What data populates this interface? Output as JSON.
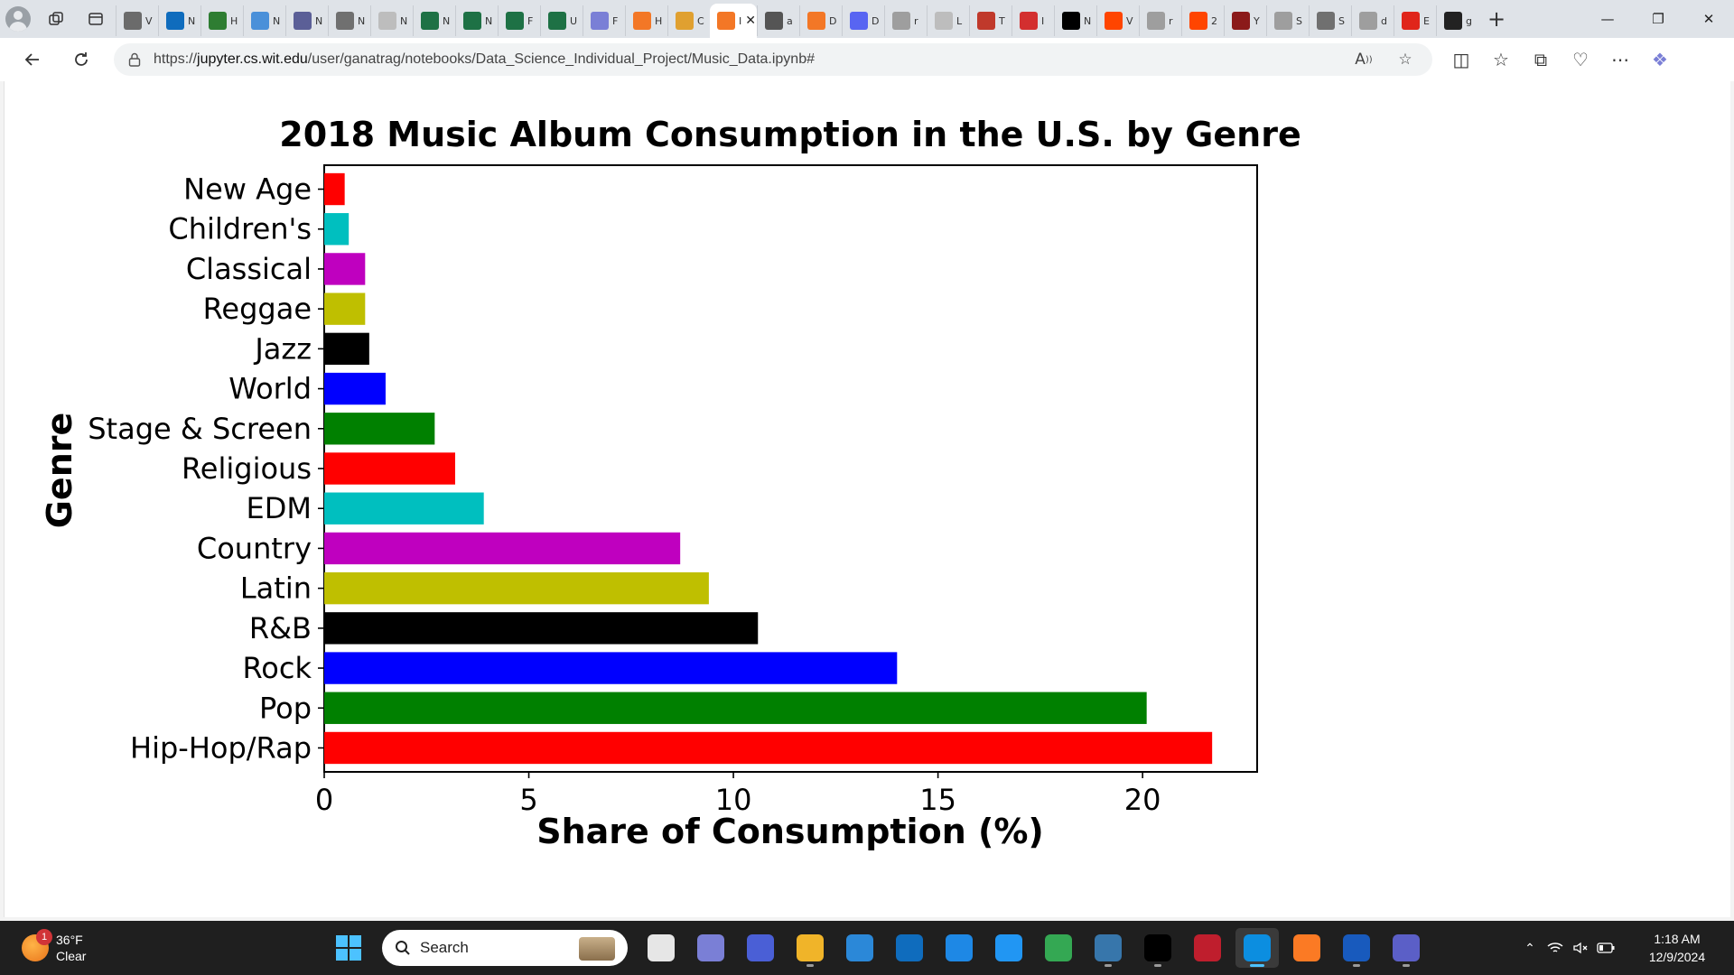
{
  "browser": {
    "url_prefix": "https://",
    "url_host": "jupyter.cs.wit.edu",
    "url_path": "/user/ganatrag/notebooks/Data_Science_Individual_Project/Music_Data.ipynb#",
    "tabs": [
      {
        "label": "V",
        "icon": "scissors-icon",
        "color": "#6b6b6b"
      },
      {
        "label": "N",
        "icon": "outlook-icon",
        "color": "#0f6cbd"
      },
      {
        "label": "H",
        "icon": "link-icon",
        "color": "#2e7d32"
      },
      {
        "label": "N",
        "icon": "k-icon",
        "color": "#4a90d9"
      },
      {
        "label": "N",
        "icon": "image-icon",
        "color": "#5b5f97"
      },
      {
        "label": "N",
        "icon": "pen-icon",
        "color": "#707070"
      },
      {
        "label": "N",
        "icon": "circle-icon",
        "color": "#bdbdbd"
      },
      {
        "label": "N",
        "icon": "excel-icon",
        "color": "#1e7145"
      },
      {
        "label": "N",
        "icon": "excel-icon",
        "color": "#1e7145"
      },
      {
        "label": "F",
        "icon": "excel-icon",
        "color": "#1e7145"
      },
      {
        "label": "U",
        "icon": "excel-icon",
        "color": "#1e7145"
      },
      {
        "label": "F",
        "icon": "copilot-icon",
        "color": "#7a7fd6"
      },
      {
        "label": "H",
        "icon": "jupyter-icon",
        "color": "#f37726"
      },
      {
        "label": "C",
        "icon": "folder-icon",
        "color": "#e0a030"
      },
      {
        "label": "I",
        "icon": "jupyter-icon",
        "color": "#f37726",
        "active": true
      },
      {
        "label": "a",
        "icon": "page-icon",
        "color": "#555555"
      },
      {
        "label": "D",
        "icon": "jupyter-icon",
        "color": "#f37726"
      },
      {
        "label": "D",
        "icon": "discord-icon",
        "color": "#5865f2"
      },
      {
        "label": "r",
        "icon": "google-icon",
        "color": "#9e9e9e"
      },
      {
        "label": "L",
        "icon": "lens-icon",
        "color": "#bdbdbd"
      },
      {
        "label": "T",
        "icon": "book-icon",
        "color": "#c0392b"
      },
      {
        "label": "I",
        "icon": "pdf-icon",
        "color": "#d32f2f"
      },
      {
        "label": "N",
        "icon": "medium-icon",
        "color": "#000000"
      },
      {
        "label": "V",
        "icon": "reddit-icon",
        "color": "#ff4500"
      },
      {
        "label": "r",
        "icon": "google-icon",
        "color": "#9e9e9e"
      },
      {
        "label": "2",
        "icon": "reddit-icon",
        "color": "#ff4500"
      },
      {
        "label": "Y",
        "icon": "chart-icon",
        "color": "#8b1a1a"
      },
      {
        "label": "S",
        "icon": "t2m-icon",
        "color": "#9e9e9e"
      },
      {
        "label": "S",
        "icon": "pen-icon",
        "color": "#707070"
      },
      {
        "label": "d",
        "icon": "google-icon",
        "color": "#9e9e9e"
      },
      {
        "label": "E",
        "icon": "acrobat-icon",
        "color": "#e0251b"
      },
      {
        "label": "g",
        "icon": "github-icon",
        "color": "#222222"
      }
    ],
    "toolbar_icons": [
      "split-screen-icon",
      "favorites-icon",
      "collections-icon",
      "browser-essentials-icon",
      "more-icon",
      "copilot-icon"
    ]
  },
  "chart_data": {
    "type": "bar",
    "orientation": "horizontal",
    "title": "2018 Music Album Consumption in the U.S. by Genre",
    "xlabel": "Share of Consumption (%)",
    "ylabel": "Genre",
    "xlim": [
      0,
      22.8
    ],
    "xticks": [
      0,
      5,
      10,
      15,
      20
    ],
    "grid": false,
    "categories": [
      "Hip-Hop/Rap",
      "Pop",
      "Rock",
      "R&B",
      "Latin",
      "Country",
      "EDM",
      "Religious",
      "Stage & Screen",
      "World",
      "Jazz",
      "Reggae",
      "Classical",
      "Children's",
      "New Age"
    ],
    "values": [
      21.7,
      20.1,
      14.0,
      10.6,
      9.4,
      8.7,
      3.9,
      3.2,
      2.7,
      1.5,
      1.1,
      1.0,
      1.0,
      0.6,
      0.5
    ],
    "colors": [
      "#ff0000",
      "#008000",
      "#0000ff",
      "#000000",
      "#bfbf00",
      "#bf00bf",
      "#00bfbf",
      "#ff0000",
      "#008000",
      "#0000ff",
      "#000000",
      "#bfbf00",
      "#bf00bf",
      "#00bfbf",
      "#ff0000"
    ]
  },
  "taskbar": {
    "weather": {
      "temp": "36°F",
      "condition": "Clear",
      "badge": "1"
    },
    "search_placeholder": "Search",
    "apps": [
      {
        "name": "task-view-icon",
        "color": "#e6e6e6"
      },
      {
        "name": "copilot-icon",
        "color": "#7a7fd6"
      },
      {
        "name": "media-player-icon",
        "color": "#4a5fd6"
      },
      {
        "name": "file-explorer-icon",
        "color": "#f0b429"
      },
      {
        "name": "microsoft-store-icon",
        "color": "#2b88d8"
      },
      {
        "name": "outlook-icon",
        "color": "#0f6cbd"
      },
      {
        "name": "mylp-icon",
        "color": "#1e88e5"
      },
      {
        "name": "get-help-icon",
        "color": "#2196f3"
      },
      {
        "name": "chrome-icon",
        "color": "#34a853"
      },
      {
        "name": "python-icon",
        "color": "#3776ab"
      },
      {
        "name": "terminal-icon",
        "color": "#000000"
      },
      {
        "name": "filezilla-icon",
        "color": "#bf1e2d"
      },
      {
        "name": "edge-icon",
        "color": "#0c8ee0"
      },
      {
        "name": "xampp-icon",
        "color": "#fb7a24"
      },
      {
        "name": "word-icon",
        "color": "#185abd"
      },
      {
        "name": "teams-icon",
        "color": "#5b5fc7"
      }
    ],
    "time": "1:18 AM",
    "date": "12/9/2024"
  }
}
